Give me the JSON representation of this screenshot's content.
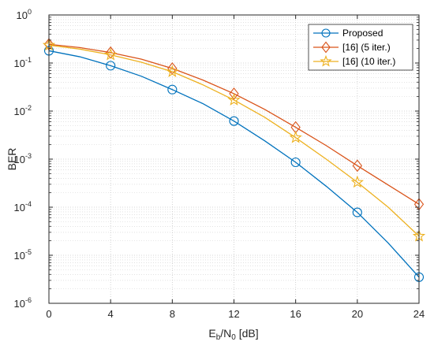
{
  "chart_data": {
    "type": "line",
    "y_scale": "log",
    "grid": true,
    "minor_grid": true,
    "legend_position": "top-right",
    "xlabel": {
      "main": "E",
      "sub1": "b",
      "mid": "/N",
      "sub2": "0",
      "tail": " [dB]"
    },
    "ylabel": "BER",
    "xlim": [
      0,
      24
    ],
    "ylim": [
      1e-06,
      1
    ],
    "x_ticks": [
      0,
      4,
      8,
      12,
      16,
      20,
      24
    ],
    "y_tick_exponents": [
      0,
      -1,
      -2,
      -3,
      -4,
      -5,
      -6
    ],
    "y_tick_base": "10",
    "x": [
      0,
      2,
      4,
      6,
      8,
      10,
      12,
      14,
      16,
      18,
      20,
      22,
      24
    ],
    "series": [
      {
        "name": "Proposed",
        "color": "#0072BD",
        "marker": "circle",
        "marker_x": [
          0,
          4,
          8,
          12,
          16,
          20,
          24
        ],
        "values": [
          0.18,
          0.135,
          0.088,
          0.053,
          0.028,
          0.0142,
          0.0062,
          0.0024,
          0.00086,
          0.00027,
          7.8e-05,
          1.8e-05,
          3.5e-06
        ]
      },
      {
        "name": "[16] (5 iter.)",
        "color": "#D95319",
        "marker": "diamond",
        "marker_x": [
          0,
          4,
          8,
          12,
          16,
          20,
          24
        ],
        "values": [
          0.245,
          0.21,
          0.165,
          0.12,
          0.077,
          0.044,
          0.023,
          0.0108,
          0.0046,
          0.0019,
          0.00073,
          0.00029,
          0.000115
        ]
      },
      {
        "name": "[16] (10 iter.)",
        "color": "#EDB120",
        "marker": "star",
        "marker_x": [
          0,
          4,
          8,
          12,
          16,
          20,
          24
        ],
        "values": [
          0.235,
          0.195,
          0.148,
          0.104,
          0.066,
          0.035,
          0.017,
          0.0074,
          0.0028,
          0.00099,
          0.00033,
          0.0001,
          2.5e-05
        ]
      }
    ]
  }
}
